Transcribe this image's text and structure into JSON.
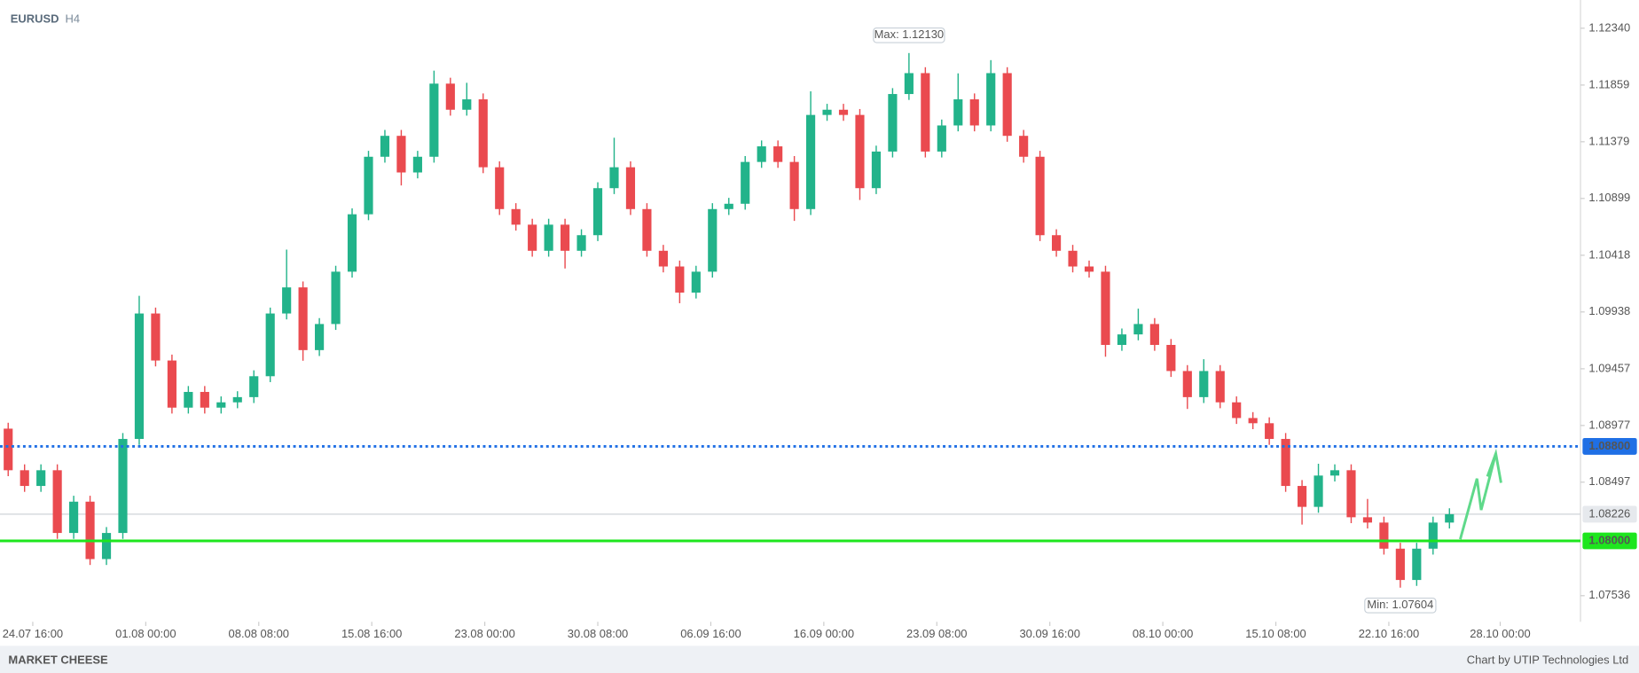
{
  "chart_data": {
    "type": "candlestick",
    "title": "EURUSD",
    "timeframe": "H4",
    "open": [
      1.0895,
      1.08598,
      1.08465,
      1.08598,
      1.08067,
      1.08332,
      1.07846,
      1.08067,
      1.08863,
      1.09925,
      1.09527,
      1.09128,
      1.09261,
      1.09128,
      1.09173,
      1.09217,
      1.09394,
      1.09925,
      1.10146,
      1.09615,
      1.09836,
      1.10279,
      1.10765,
      1.11252,
      1.11429,
      1.11119,
      1.11252,
      1.11871,
      1.1165,
      1.11738,
      1.11163,
      1.10809,
      1.10677,
      1.10456,
      1.10677,
      1.10456,
      1.10588,
      1.10986,
      1.11163,
      1.10809,
      1.10456,
      1.10323,
      1.10102,
      1.10279,
      1.10809,
      1.10854,
      1.11208,
      1.1134,
      1.11208,
      1.10809,
      1.11606,
      1.1165,
      1.11606,
      1.10986,
      1.11296,
      1.11783,
      1.1196,
      1.11296,
      1.11517,
      1.11738,
      1.11517,
      1.1196,
      1.11429,
      1.11252,
      1.10588,
      1.10456,
      1.10323,
      1.10279,
      1.09659,
      1.09748,
      1.09836,
      1.09659,
      1.09438,
      1.09217,
      1.09438,
      1.09173,
      1.0904,
      1.08996,
      1.08863,
      1.08465,
      1.08288,
      1.08553,
      1.08598,
      1.082,
      1.08155,
      1.07934,
      1.07669,
      1.07934,
      1.08155
    ],
    "high": [
      1.09,
      1.08648,
      1.08648,
      1.08648,
      1.08382,
      1.08382,
      1.08117,
      1.08913,
      1.10075,
      1.09975,
      1.09577,
      1.09311,
      1.09311,
      1.09223,
      1.09267,
      1.09444,
      1.09975,
      1.10466,
      1.10196,
      1.09886,
      1.10329,
      1.10815,
      1.11302,
      1.11479,
      1.11479,
      1.11302,
      1.11981,
      1.11921,
      1.11878,
      1.11788,
      1.11213,
      1.10859,
      1.10727,
      1.10727,
      1.10727,
      1.10638,
      1.11036,
      1.11413,
      1.11213,
      1.10859,
      1.10506,
      1.10373,
      1.10329,
      1.10859,
      1.10904,
      1.11258,
      1.1139,
      1.1139,
      1.11258,
      1.11806,
      1.117,
      1.117,
      1.11656,
      1.11346,
      1.11833,
      1.1213,
      1.1201,
      1.11567,
      1.11958,
      1.11788,
      1.1207,
      1.1201,
      1.11479,
      1.11302,
      1.10638,
      1.10506,
      1.10373,
      1.10329,
      1.09798,
      1.09966,
      1.09886,
      1.09709,
      1.09488,
      1.09538,
      1.09488,
      1.09223,
      1.0909,
      1.09046,
      1.08913,
      1.08515,
      1.08653,
      1.08648,
      1.08648,
      1.08355,
      1.08205,
      1.07984,
      1.07984,
      1.08205,
      1.08276
    ],
    "low": [
      1.08548,
      1.08415,
      1.08415,
      1.08017,
      1.08017,
      1.07796,
      1.07796,
      1.08017,
      1.08813,
      1.09477,
      1.09078,
      1.09078,
      1.09078,
      1.09078,
      1.09123,
      1.09167,
      1.09344,
      1.09875,
      1.09525,
      1.09565,
      1.09786,
      1.10229,
      1.10715,
      1.11202,
      1.11009,
      1.11069,
      1.11202,
      1.116,
      1.116,
      1.11113,
      1.10759,
      1.10627,
      1.10406,
      1.10406,
      1.10306,
      1.10406,
      1.10538,
      1.10936,
      1.10759,
      1.10406,
      1.10273,
      1.10012,
      1.10052,
      1.10229,
      1.10759,
      1.10804,
      1.11158,
      1.11158,
      1.10709,
      1.10759,
      1.11556,
      1.11556,
      1.10886,
      1.10936,
      1.11246,
      1.11733,
      1.11246,
      1.11246,
      1.11467,
      1.11467,
      1.11467,
      1.11379,
      1.11202,
      1.10538,
      1.10406,
      1.10273,
      1.10229,
      1.09559,
      1.09609,
      1.09698,
      1.09609,
      1.09388,
      1.09117,
      1.09167,
      1.09123,
      1.0899,
      1.08946,
      1.08813,
      1.08415,
      1.08138,
      1.08238,
      1.08503,
      1.0815,
      1.08105,
      1.07884,
      1.07604,
      1.07619,
      1.07884,
      1.08105
    ],
    "close": [
      1.08598,
      1.08465,
      1.08598,
      1.08067,
      1.08332,
      1.07846,
      1.08067,
      1.08863,
      1.09925,
      1.09527,
      1.09128,
      1.09261,
      1.09128,
      1.09173,
      1.09217,
      1.09394,
      1.09925,
      1.10146,
      1.09615,
      1.09836,
      1.10279,
      1.10765,
      1.11252,
      1.11429,
      1.11119,
      1.11252,
      1.11871,
      1.1165,
      1.11738,
      1.11163,
      1.10809,
      1.10677,
      1.10456,
      1.10677,
      1.10456,
      1.10588,
      1.10986,
      1.11163,
      1.10809,
      1.10456,
      1.10323,
      1.10102,
      1.10279,
      1.10809,
      1.10854,
      1.11208,
      1.1134,
      1.11208,
      1.10809,
      1.11606,
      1.1165,
      1.11606,
      1.10986,
      1.11296,
      1.11783,
      1.1196,
      1.11296,
      1.11517,
      1.11738,
      1.11517,
      1.1196,
      1.11429,
      1.11252,
      1.10588,
      1.10456,
      1.10323,
      1.10279,
      1.09659,
      1.09748,
      1.09836,
      1.09659,
      1.09438,
      1.09217,
      1.09438,
      1.09173,
      1.0904,
      1.08996,
      1.08863,
      1.08465,
      1.08288,
      1.08553,
      1.08598,
      1.082,
      1.08155,
      1.07934,
      1.07669,
      1.07934,
      1.08155,
      1.08226
    ],
    "xlim": [
      -0.5,
      96
    ],
    "xticks": [
      {
        "value": 1.5,
        "label": "24.07 16:00"
      },
      {
        "value": 8.4,
        "label": "01.08 00:00"
      },
      {
        "value": 15.3,
        "label": "08.08 08:00"
      },
      {
        "value": 22.2,
        "label": "15.08 16:00"
      },
      {
        "value": 29.1,
        "label": "23.08 00:00"
      },
      {
        "value": 36,
        "label": "30.08 08:00"
      },
      {
        "value": 42.9,
        "label": "06.09 16:00"
      },
      {
        "value": 49.8,
        "label": "16.09 00:00"
      },
      {
        "value": 56.7,
        "label": "23.09 08:00"
      },
      {
        "value": 63.6,
        "label": "30.09 16:00"
      },
      {
        "value": 70.5,
        "label": "08.10 00:00"
      },
      {
        "value": 77.4,
        "label": "15.10 08:00"
      },
      {
        "value": 84.3,
        "label": "22.10 16:00"
      },
      {
        "value": 91.1,
        "label": "28.10 00:00"
      }
    ],
    "ylim": [
      1.07315,
      1.12579
    ],
    "yticks": [
      {
        "value": 1.1234,
        "label": "1.12340"
      },
      1.11859,
      1.11379,
      1.10899,
      1.10418,
      1.09938,
      1.09457,
      1.08977,
      1.08497,
      1.07536
    ],
    "up_color": "#22b38a",
    "down_color": "#ea4a4f",
    "levels": [
      {
        "value": 1.088,
        "label": "1.08800",
        "color": "#1f6fe5",
        "style": "dotted"
      },
      {
        "value": 1.08,
        "label": "1.08000",
        "color": "#1ee61e",
        "style": "solid"
      }
    ],
    "last_price": 1.08226,
    "max": {
      "value": 1.1213,
      "label": "Max: 1.12130"
    },
    "min": {
      "value": 1.07604,
      "label": "Min: 1.07604"
    }
  },
  "footer": {
    "logo": "MARKET CHEESE",
    "credit": "Chart by UTIP Technologies Ltd"
  }
}
